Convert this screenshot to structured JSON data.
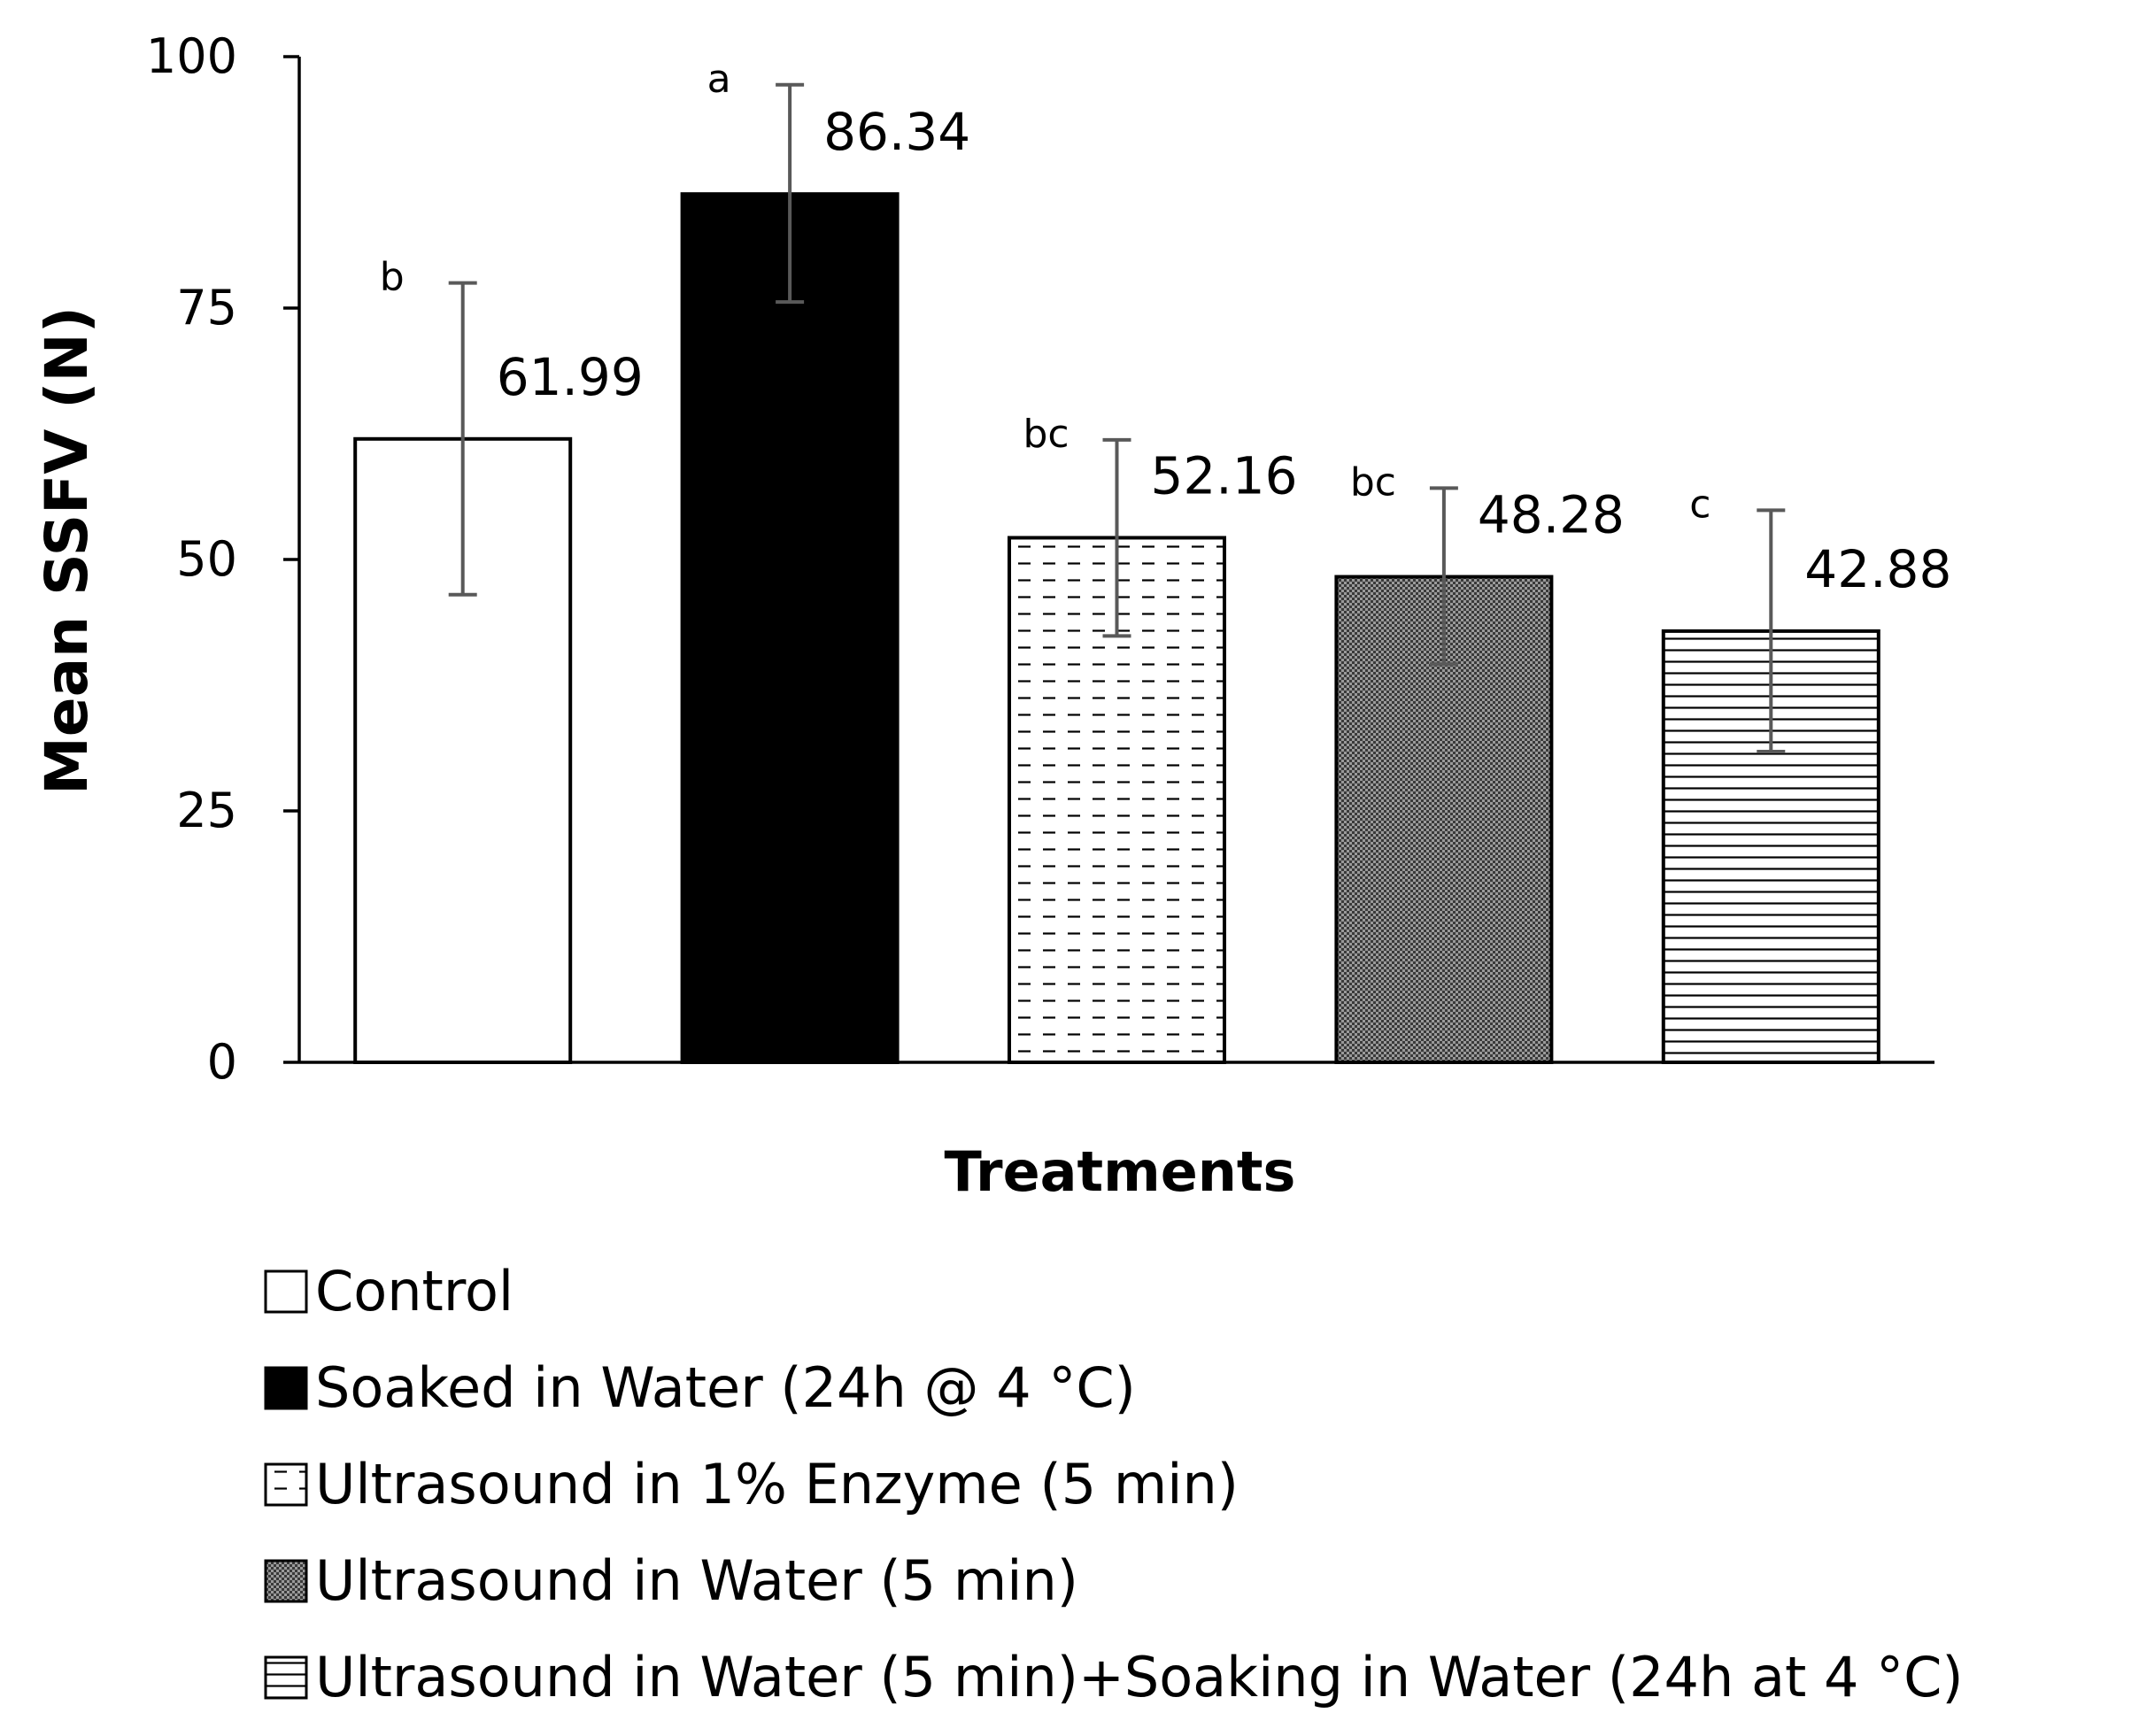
{
  "chart_data": {
    "type": "bar",
    "title": "",
    "xlabel": "Treatments",
    "ylabel": "Mean SSFV (N)",
    "ylim": [
      0,
      100
    ],
    "yticks": [
      0,
      25,
      50,
      75,
      100
    ],
    "grid": false,
    "legend_position": "bottom",
    "series": [
      {
        "name": "Control",
        "value": 61.99,
        "value_label": "61.99",
        "error_low": 46.5,
        "error_high": 77.5,
        "significance": "b",
        "fill": "white",
        "color": "#ffffff"
      },
      {
        "name": "Soaked in Water (24h @ 4 °C)",
        "value": 86.34,
        "value_label": "86.34",
        "error_low": 75.6,
        "error_high": 97.2,
        "significance": "a",
        "fill": "solid",
        "color": "#000000"
      },
      {
        "name": "Ultrasound in 1% Enzyme (5 min)",
        "value": 52.16,
        "value_label": "52.16",
        "error_low": 42.4,
        "error_high": 61.9,
        "significance": "bc",
        "fill": "dashed-horizontal",
        "color": "#000000"
      },
      {
        "name": "Ultrasound in Water (5 min)",
        "value": 48.28,
        "value_label": "48.28",
        "error_low": 39.6,
        "error_high": 57.1,
        "significance": "bc",
        "fill": "dotted-grid",
        "color": "#000000"
      },
      {
        "name": "Ultrasound in Water (5 min)+Soaking in Water (24h at 4 °C)",
        "value": 42.88,
        "value_label": "42.88",
        "error_low": 30.9,
        "error_high": 54.9,
        "significance": "c",
        "fill": "horizontal-lines",
        "color": "#000000"
      }
    ],
    "error_bar_color": "#595959",
    "axis_color": "#000000"
  }
}
